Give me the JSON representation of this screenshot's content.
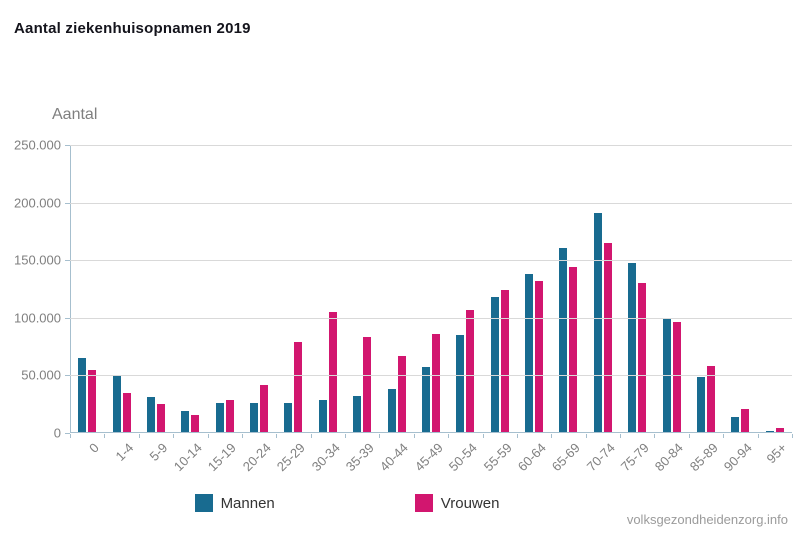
{
  "header": {
    "title": "Aantal ziekenhuisopnamen 2019"
  },
  "chart_data": {
    "type": "bar",
    "title": "Aantal ziekenhuisopnamen 2019",
    "xlabel": "",
    "ylabel": "Aantal",
    "ylim": [
      0,
      250000
    ],
    "y_tick_step": 50000,
    "y_tick_labels": [
      "0",
      "50.000",
      "100.000",
      "150.000",
      "200.000",
      "250.000"
    ],
    "grid": true,
    "legend_position": "bottom",
    "categories": [
      "0",
      "1-4",
      "5-9",
      "10-14",
      "15-19",
      "20-24",
      "25-29",
      "30-34",
      "35-39",
      "40-44",
      "45-49",
      "50-54",
      "55-59",
      "60-64",
      "65-69",
      "70-74",
      "75-79",
      "80-84",
      "85-89",
      "90-94",
      "95+"
    ],
    "series": [
      {
        "name": "Mannen",
        "color": "#186b90",
        "values": [
          65000,
          50000,
          31000,
          19000,
          26000,
          26000,
          26000,
          29000,
          32000,
          38000,
          57000,
          85000,
          118000,
          138000,
          161000,
          191000,
          148000,
          100000,
          49000,
          14000,
          2000
        ]
      },
      {
        "name": "Vrouwen",
        "color": "#d2166f",
        "values": [
          55000,
          35000,
          25000,
          16000,
          29000,
          42000,
          79000,
          105000,
          83000,
          67000,
          86000,
          107000,
          124000,
          132000,
          144000,
          165000,
          130000,
          96000,
          58000,
          21000,
          4000
        ]
      }
    ]
  },
  "footer": {
    "watermark": "volksgezondheidenzorg.info"
  }
}
